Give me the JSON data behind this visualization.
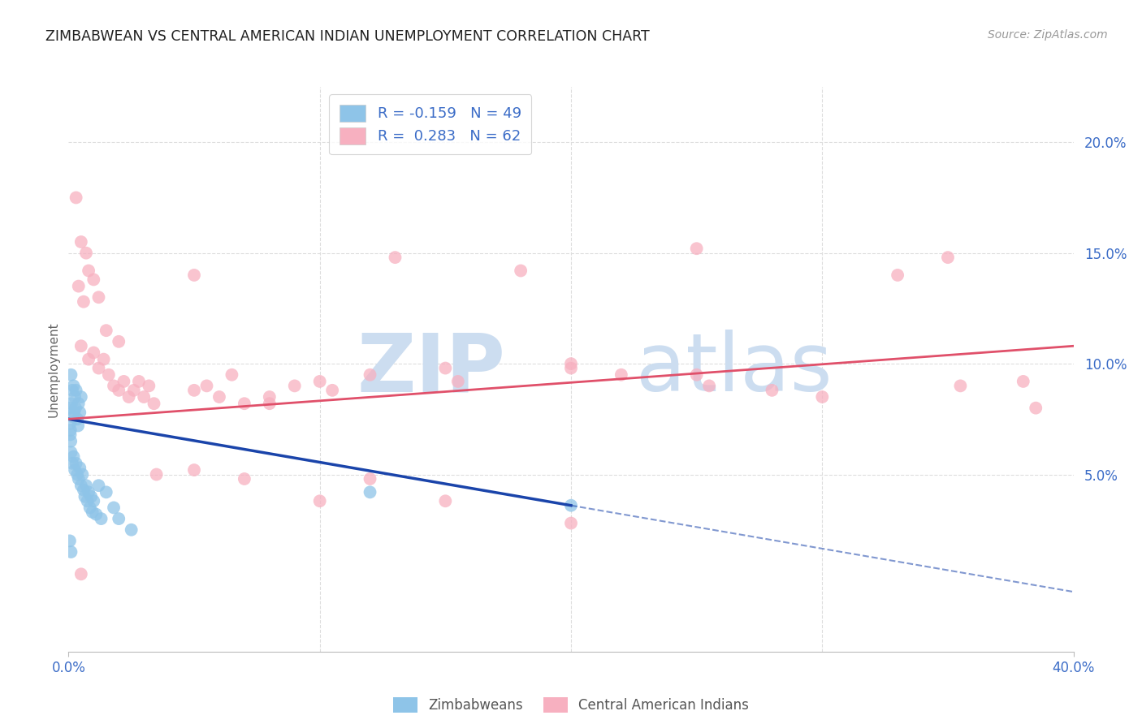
{
  "title": "ZIMBABWEAN VS CENTRAL AMERICAN INDIAN UNEMPLOYMENT CORRELATION CHART",
  "source": "Source: ZipAtlas.com",
  "ylabel": "Unemployment",
  "ytick_labels": [
    "5.0%",
    "10.0%",
    "15.0%",
    "20.0%"
  ],
  "ytick_values": [
    5.0,
    10.0,
    15.0,
    20.0
  ],
  "xmin": 0.0,
  "xmax": 40.0,
  "ymin": -3.0,
  "ymax": 22.5,
  "legend_blue_r": "-0.159",
  "legend_blue_n": "49",
  "legend_pink_r": "0.283",
  "legend_pink_n": "62",
  "blue_color": "#8ec4e8",
  "pink_color": "#f7b0c0",
  "trend_blue_solid_color": "#1a44aa",
  "trend_pink_color": "#e0506a",
  "watermark_zip": "ZIP",
  "watermark_atlas": "atlas",
  "watermark_color": "#ccddf0",
  "blue_points": [
    [
      0.1,
      9.5
    ],
    [
      0.15,
      8.8
    ],
    [
      0.12,
      8.2
    ],
    [
      0.18,
      7.6
    ],
    [
      0.08,
      7.0
    ],
    [
      0.2,
      9.0
    ],
    [
      0.25,
      8.5
    ],
    [
      0.22,
      7.8
    ],
    [
      0.3,
      8.8
    ],
    [
      0.28,
      8.0
    ],
    [
      0.35,
      7.5
    ],
    [
      0.4,
      8.2
    ],
    [
      0.38,
      7.2
    ],
    [
      0.45,
      7.8
    ],
    [
      0.5,
      8.5
    ],
    [
      0.05,
      8.0
    ],
    [
      0.06,
      7.3
    ],
    [
      0.07,
      6.8
    ],
    [
      0.09,
      6.5
    ],
    [
      0.1,
      6.0
    ],
    [
      0.15,
      5.5
    ],
    [
      0.2,
      5.8
    ],
    [
      0.25,
      5.2
    ],
    [
      0.3,
      5.5
    ],
    [
      0.35,
      5.0
    ],
    [
      0.4,
      4.8
    ],
    [
      0.45,
      5.3
    ],
    [
      0.5,
      4.5
    ],
    [
      0.55,
      5.0
    ],
    [
      0.6,
      4.3
    ],
    [
      0.65,
      4.0
    ],
    [
      0.7,
      4.5
    ],
    [
      0.75,
      3.8
    ],
    [
      0.8,
      4.2
    ],
    [
      0.85,
      3.5
    ],
    [
      0.9,
      4.0
    ],
    [
      0.95,
      3.3
    ],
    [
      1.0,
      3.8
    ],
    [
      1.1,
      3.2
    ],
    [
      1.2,
      4.5
    ],
    [
      1.3,
      3.0
    ],
    [
      1.5,
      4.2
    ],
    [
      1.8,
      3.5
    ],
    [
      2.0,
      3.0
    ],
    [
      2.5,
      2.5
    ],
    [
      12.0,
      4.2
    ],
    [
      20.0,
      3.6
    ],
    [
      0.05,
      2.0
    ],
    [
      0.1,
      1.5
    ]
  ],
  "pink_points": [
    [
      0.3,
      17.5
    ],
    [
      0.5,
      15.5
    ],
    [
      0.7,
      15.0
    ],
    [
      0.8,
      14.2
    ],
    [
      1.0,
      13.8
    ],
    [
      0.4,
      13.5
    ],
    [
      0.6,
      12.8
    ],
    [
      1.2,
      13.0
    ],
    [
      1.5,
      11.5
    ],
    [
      2.0,
      11.0
    ],
    [
      0.5,
      10.8
    ],
    [
      0.8,
      10.2
    ],
    [
      1.0,
      10.5
    ],
    [
      1.2,
      9.8
    ],
    [
      1.4,
      10.2
    ],
    [
      1.6,
      9.5
    ],
    [
      1.8,
      9.0
    ],
    [
      2.0,
      8.8
    ],
    [
      2.2,
      9.2
    ],
    [
      2.4,
      8.5
    ],
    [
      2.6,
      8.8
    ],
    [
      2.8,
      9.2
    ],
    [
      3.0,
      8.5
    ],
    [
      3.2,
      9.0
    ],
    [
      3.4,
      8.2
    ],
    [
      5.0,
      8.8
    ],
    [
      5.5,
      9.0
    ],
    [
      6.0,
      8.5
    ],
    [
      6.5,
      9.5
    ],
    [
      7.0,
      8.2
    ],
    [
      8.0,
      8.5
    ],
    [
      9.0,
      9.0
    ],
    [
      10.0,
      9.2
    ],
    [
      10.5,
      8.8
    ],
    [
      12.0,
      9.5
    ],
    [
      15.0,
      9.8
    ],
    [
      15.5,
      9.2
    ],
    [
      18.0,
      14.2
    ],
    [
      20.0,
      10.0
    ],
    [
      22.0,
      9.5
    ],
    [
      25.0,
      15.2
    ],
    [
      28.0,
      8.8
    ],
    [
      30.0,
      8.5
    ],
    [
      33.0,
      14.0
    ],
    [
      35.0,
      14.8
    ],
    [
      35.5,
      9.0
    ],
    [
      38.0,
      9.2
    ],
    [
      5.0,
      14.0
    ],
    [
      8.0,
      8.2
    ],
    [
      13.0,
      14.8
    ],
    [
      3.5,
      5.0
    ],
    [
      7.0,
      4.8
    ],
    [
      10.0,
      3.8
    ],
    [
      15.0,
      3.8
    ],
    [
      20.0,
      2.8
    ],
    [
      5.0,
      5.2
    ],
    [
      12.0,
      4.8
    ],
    [
      25.0,
      9.5
    ],
    [
      0.5,
      0.5
    ],
    [
      38.5,
      8.0
    ],
    [
      20.0,
      9.8
    ],
    [
      25.5,
      9.0
    ]
  ],
  "blue_solid_x0": 0.0,
  "blue_solid_x1": 20.0,
  "blue_solid_y0": 7.5,
  "blue_solid_y1": 3.6,
  "blue_dash_x0": 20.0,
  "blue_dash_x1": 40.0,
  "blue_dash_y0": 3.6,
  "blue_dash_y1": -0.3,
  "pink_x0": 0.0,
  "pink_x1": 40.0,
  "pink_y0": 7.5,
  "pink_y1": 10.8,
  "grid_color": "#dddddd",
  "bg_color": "#ffffff"
}
